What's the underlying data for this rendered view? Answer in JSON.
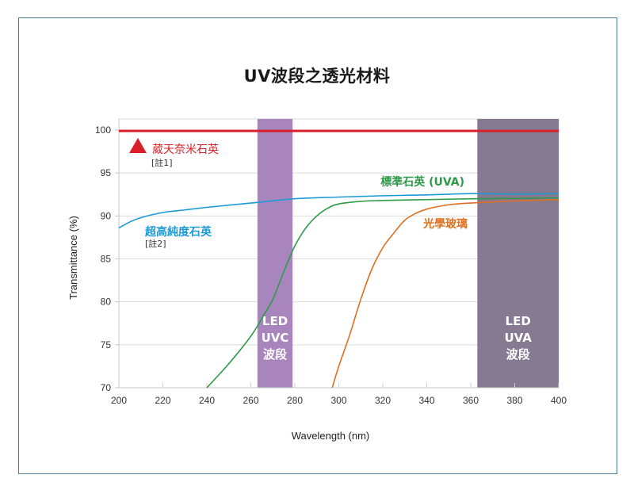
{
  "title": "UV波段之透光材料",
  "chart_data": {
    "type": "line",
    "title": "UV波段之透光材料",
    "xlabel": "Wavelength (nm)",
    "ylabel": "Transmittance (%)",
    "xlim": [
      200,
      400
    ],
    "ylim": [
      70,
      101.3
    ],
    "grid": true,
    "x_ticks": [
      200,
      220,
      240,
      260,
      280,
      300,
      320,
      340,
      360,
      380,
      400
    ],
    "y_ticks": [
      70,
      75,
      80,
      85,
      90,
      95,
      100
    ],
    "bands": [
      {
        "name": "LED UVC 波段",
        "lines": [
          "LED",
          "UVC",
          "波段"
        ],
        "x_range": [
          263,
          279
        ],
        "color": "#a886bd"
      },
      {
        "name": "LED UVA 波段",
        "lines": [
          "LED",
          "UVA",
          "波段"
        ],
        "x_range": [
          363,
          400
        ],
        "color": "#857a92"
      }
    ],
    "series": [
      {
        "name": "葳天奈米石英",
        "note": "[註1]",
        "color": "#d9202a",
        "marker": "triangle",
        "x": [
          200,
          400
        ],
        "y": [
          99.9,
          99.9
        ]
      },
      {
        "name": "超高純度石英",
        "note": "[註2]",
        "color": "#1b9ad6",
        "x": [
          200,
          205,
          210,
          220,
          230,
          240,
          260,
          280,
          300,
          320,
          340,
          360,
          380,
          400
        ],
        "y": [
          88.6,
          89.3,
          89.8,
          90.4,
          90.7,
          91.0,
          91.5,
          92.0,
          92.2,
          92.35,
          92.45,
          92.6,
          92.55,
          92.6
        ]
      },
      {
        "name": "標準石英 (UVA)",
        "note": "",
        "color": "#2e9a48",
        "x": [
          240,
          250,
          260,
          266,
          270,
          275,
          280,
          285,
          290,
          295,
          300,
          310,
          320,
          340,
          360,
          380,
          400
        ],
        "y": [
          70,
          72.8,
          76.0,
          78.5,
          80.3,
          83.5,
          86.5,
          88.6,
          90.0,
          90.9,
          91.4,
          91.7,
          91.8,
          91.9,
          92.0,
          92.05,
          92.1
        ]
      },
      {
        "name": "光學玻璃",
        "note": "",
        "color": "#de7021",
        "x": [
          297,
          300,
          305,
          310,
          315,
          320,
          325,
          330,
          335,
          340,
          350,
          360,
          380,
          400
        ],
        "y": [
          70,
          72.5,
          76.2,
          80.3,
          83.8,
          86.3,
          88.0,
          89.5,
          90.3,
          90.8,
          91.3,
          91.5,
          91.75,
          91.9
        ]
      }
    ]
  }
}
